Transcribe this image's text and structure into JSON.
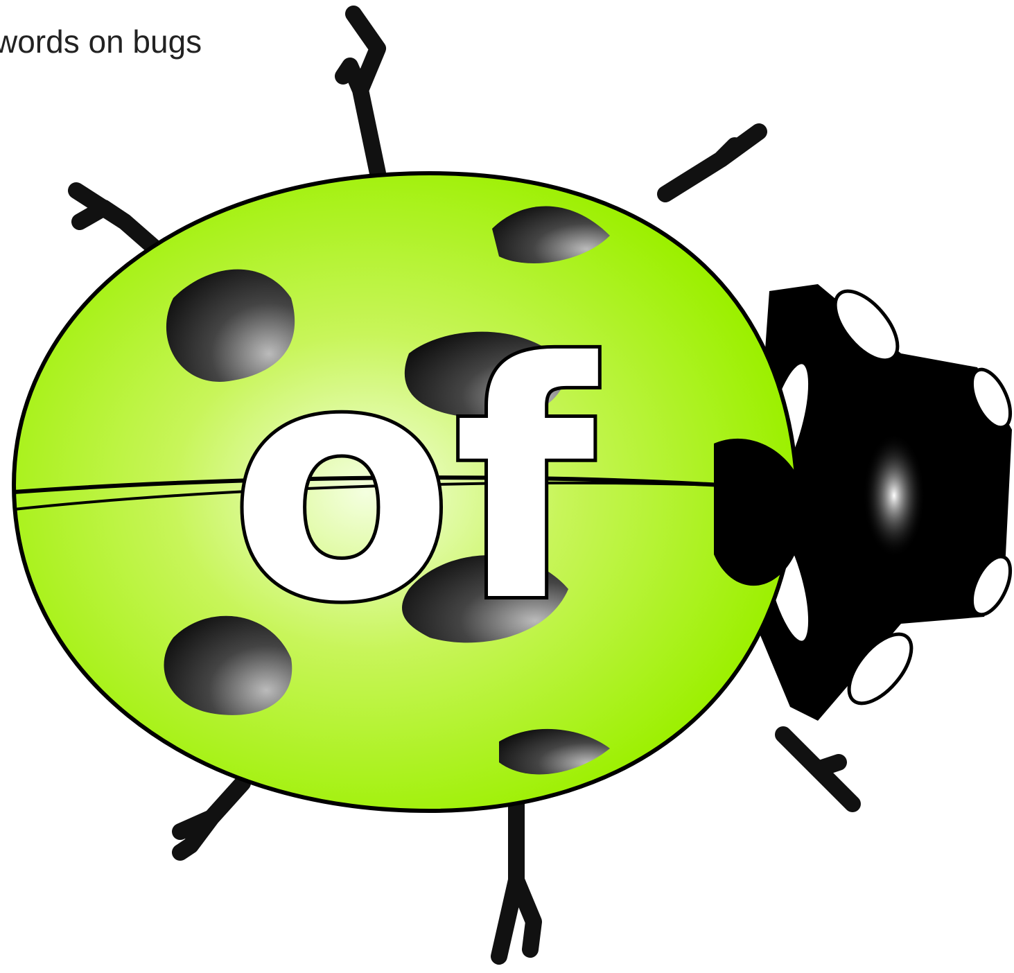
{
  "header": {
    "title": "words on bugs"
  },
  "word": "of"
}
